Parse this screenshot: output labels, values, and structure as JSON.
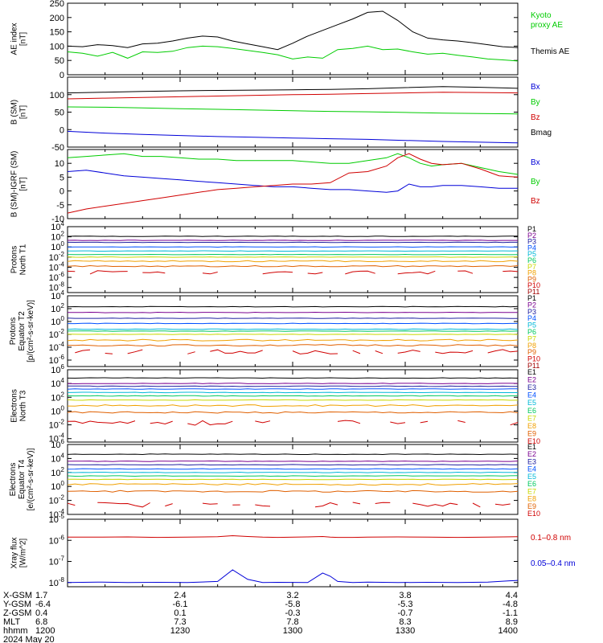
{
  "page_title": "",
  "colors": {
    "black": "#000000",
    "red": "#d00000",
    "green": "#00cc00",
    "blue": "#0000d8",
    "p1": "#000000",
    "p2": "#7a0090",
    "p3": "#2020a0",
    "p4": "#0050ff",
    "p5": "#00b8d8",
    "p6": "#00c860",
    "p7": "#c8d800",
    "p8": "#f0a000",
    "p9": "#e06000",
    "p10": "#d00000",
    "p11": "#a00000"
  },
  "x_axis": {
    "ticks": [
      "1200",
      "1230",
      "1300",
      "1330",
      "1400"
    ],
    "ephemeris": [
      {
        "label": "X-GSM",
        "values": [
          "1.7",
          "2.4",
          "3.2",
          "3.8",
          "4.4"
        ]
      },
      {
        "label": "Y-GSM",
        "values": [
          "-6.4",
          "-6.1",
          "-5.8",
          "-5.3",
          "-4.8"
        ]
      },
      {
        "label": "Z-GSM",
        "values": [
          "0.4",
          "0.1",
          "-0.3",
          "-0.7",
          "-1.1"
        ]
      },
      {
        "label": "MLT",
        "values": [
          "6.8",
          "7.3",
          "7.8",
          "8.3",
          "8.9"
        ]
      },
      {
        "label": "hhmm",
        "values": [
          "1200",
          "1230",
          "1300",
          "1330",
          "1400"
        ]
      }
    ],
    "date": "2024 May 20"
  },
  "chart_data": [
    {
      "type": "line",
      "id": "ae",
      "ylabel": [
        "AE index",
        "[nT]"
      ],
      "ylim": [
        0,
        250
      ],
      "scale": "linear",
      "yticks": [
        0,
        50,
        100,
        150,
        200,
        250
      ],
      "x": [
        0,
        4,
        8,
        12,
        16,
        20,
        24,
        28,
        32,
        36,
        40,
        44,
        48,
        52,
        56,
        60,
        64,
        68,
        72,
        76,
        80,
        84,
        88,
        92,
        96,
        100,
        104,
        108,
        112,
        116,
        120
      ],
      "series": [
        {
          "name": "Themis AE",
          "color": "#000000",
          "values": [
            100,
            98,
            105,
            102,
            95,
            108,
            110,
            118,
            128,
            135,
            132,
            118,
            108,
            98,
            88,
            110,
            135,
            155,
            175,
            195,
            218,
            222,
            190,
            150,
            128,
            122,
            118,
            112,
            105,
            98,
            95
          ]
        },
        {
          "name": "Kyoto proxy AE",
          "color": "#00cc00",
          "values": [
            80,
            75,
            65,
            78,
            58,
            80,
            78,
            82,
            95,
            100,
            98,
            92,
            85,
            78,
            70,
            55,
            62,
            58,
            88,
            92,
            100,
            88,
            90,
            80,
            72,
            75,
            68,
            62,
            55,
            52,
            48
          ]
        }
      ],
      "legend_lines": [
        {
          "text": "Kyoto",
          "color": "#00cc00"
        },
        {
          "text": "proxy AE",
          "color": "#00cc00"
        },
        {
          "text": "Themis AE",
          "color": "#000000"
        }
      ]
    },
    {
      "type": "line",
      "id": "bsm",
      "ylabel": [
        "B (SM)",
        "[nT]"
      ],
      "ylim": [
        -50,
        150
      ],
      "scale": "linear",
      "yticks": [
        -50,
        0,
        50,
        100
      ],
      "x": [
        0,
        10,
        20,
        30,
        40,
        50,
        60,
        70,
        80,
        90,
        100,
        110,
        120
      ],
      "series": [
        {
          "name": "Bmag",
          "color": "#000000",
          "values": [
            105,
            107,
            109,
            111,
            112,
            113,
            114,
            115,
            117,
            120,
            123,
            121,
            118
          ]
        },
        {
          "name": "Bx",
          "color": "#0000d8",
          "values": [
            -5,
            -10,
            -14,
            -17,
            -20,
            -22,
            -24,
            -26,
            -28,
            -31,
            -34,
            -36,
            -38
          ]
        },
        {
          "name": "By",
          "color": "#00cc00",
          "values": [
            65,
            64,
            62,
            60,
            58,
            56,
            54,
            52,
            51,
            49,
            47,
            46,
            45
          ]
        },
        {
          "name": "Bz",
          "color": "#d00000",
          "values": [
            88,
            90,
            92,
            94,
            96,
            98,
            100,
            101,
            103,
            105,
            107,
            106,
            105
          ]
        }
      ],
      "legend_lines": [
        {
          "text": "Bx",
          "color": "#0000d8"
        },
        {
          "text": "By",
          "color": "#00cc00"
        },
        {
          "text": "Bz",
          "color": "#d00000"
        },
        {
          "text": "Bmag",
          "color": "#000000"
        }
      ]
    },
    {
      "type": "line",
      "id": "digrf",
      "ylabel": [
        "B (SM)-IGRF (SM)",
        "[nT]"
      ],
      "ylim": [
        -10,
        15
      ],
      "scale": "linear",
      "yticks": [
        -10,
        -5,
        0,
        5,
        10
      ],
      "x": [
        0,
        5,
        10,
        15,
        20,
        25,
        30,
        35,
        40,
        45,
        50,
        55,
        60,
        65,
        70,
        75,
        80,
        85,
        88,
        91,
        94,
        97,
        100,
        105,
        110,
        115,
        120
      ],
      "series": [
        {
          "name": "Bx",
          "color": "#0000d8",
          "values": [
            7,
            7.5,
            6.5,
            5.5,
            5,
            4.5,
            4,
            3.5,
            3,
            2.5,
            2,
            1.5,
            1.5,
            1,
            0.5,
            0.5,
            0,
            -0.5,
            0,
            2.5,
            1.5,
            1.5,
            2,
            2,
            1.5,
            1,
            1
          ]
        },
        {
          "name": "By",
          "color": "#00cc00",
          "values": [
            12,
            12.5,
            13,
            13.5,
            12.5,
            12.5,
            12,
            11.5,
            11.5,
            11,
            11,
            11,
            11,
            10.5,
            10,
            10,
            11,
            12,
            13.5,
            12,
            10,
            9,
            9.5,
            10,
            8.5,
            7,
            6
          ]
        },
        {
          "name": "Bz",
          "color": "#d00000",
          "values": [
            -8,
            -6.5,
            -5.5,
            -4.5,
            -3.5,
            -2.5,
            -1.5,
            -0.5,
            0.5,
            1,
            1.5,
            2,
            2.5,
            2.5,
            3,
            6.5,
            7,
            9,
            12,
            13.5,
            11.5,
            10,
            9.5,
            10,
            8,
            5.5,
            5
          ]
        }
      ],
      "legend_lines": [
        {
          "text": "Bx",
          "color": "#0000d8"
        },
        {
          "text": "By",
          "color": "#00cc00"
        },
        {
          "text": "Bz",
          "color": "#d00000"
        }
      ]
    },
    {
      "type": "line",
      "id": "pn1",
      "ylabel": [
        "Protons",
        "North T1"
      ],
      "ylim": [
        -9,
        4
      ],
      "scale": "log",
      "yticks": [
        -8,
        -6,
        -4,
        -2,
        0,
        2,
        4
      ],
      "series": [
        {
          "name": "P1",
          "color": "#000000",
          "base": 2.1
        },
        {
          "name": "P2",
          "color": "#7a0090",
          "base": 1.3
        },
        {
          "name": "P3",
          "color": "#2020a0",
          "base": 0.9
        },
        {
          "name": "P4",
          "color": "#0050ff",
          "base": 0.0
        },
        {
          "name": "P5",
          "color": "#00b8d8",
          "base": -0.8
        },
        {
          "name": "P6",
          "color": "#00c860",
          "base": -1.5
        },
        {
          "name": "P7",
          "color": "#c8d800",
          "base": -2.0
        },
        {
          "name": "P8",
          "color": "#f0a000",
          "base": -2.8
        },
        {
          "name": "P9",
          "color": "#e06000",
          "base": -3.8
        },
        {
          "name": "P10",
          "color": "#d00000",
          "base": -5.0,
          "gappy": true
        },
        {
          "name": "P11",
          "color": "#a00000",
          "base": -7.0,
          "empty": true
        }
      ]
    },
    {
      "type": "line",
      "id": "pe2",
      "ylabel": [
        "Protons",
        "Equator T2",
        "[p/(cm²-s-sr-keV)]"
      ],
      "ylim": [
        -7,
        4
      ],
      "scale": "log",
      "yticks": [
        -6,
        -4,
        -2,
        0,
        2,
        4
      ],
      "series": [
        {
          "name": "P1",
          "color": "#000000",
          "base": 2.3
        },
        {
          "name": "P2",
          "color": "#7a0090",
          "base": 1.4
        },
        {
          "name": "P3",
          "color": "#2020a0",
          "base": 0.5
        },
        {
          "name": "P4",
          "color": "#0050ff",
          "base": -0.3
        },
        {
          "name": "P5",
          "color": "#00b8d8",
          "base": -1.2
        },
        {
          "name": "P6",
          "color": "#00c860",
          "base": -1.5
        },
        {
          "name": "P7",
          "color": "#c8d800",
          "base": -2.0
        },
        {
          "name": "P8",
          "color": "#f0a000",
          "base": -2.9
        },
        {
          "name": "P9",
          "color": "#e06000",
          "base": -3.7
        },
        {
          "name": "P10",
          "color": "#d00000",
          "base": -4.7,
          "gappy": true
        },
        {
          "name": "P11",
          "color": "#a00000",
          "base": -6.2,
          "empty": true
        }
      ]
    },
    {
      "type": "line",
      "id": "en3",
      "ylabel": [
        "Electrons",
        "North T3"
      ],
      "ylim": [
        -4.5,
        6
      ],
      "scale": "log",
      "yticks": [
        -4,
        -2,
        0,
        2,
        4,
        6
      ],
      "series": [
        {
          "name": "E1",
          "color": "#000000",
          "base": 4.8
        },
        {
          "name": "E2",
          "color": "#7a0090",
          "base": 4.0
        },
        {
          "name": "E3",
          "color": "#2020a0",
          "base": 3.6
        },
        {
          "name": "E4",
          "color": "#0050ff",
          "base": 3.2
        },
        {
          "name": "E5",
          "color": "#00b8d8",
          "base": 2.7
        },
        {
          "name": "E6",
          "color": "#00c860",
          "base": 2.2
        },
        {
          "name": "E7",
          "color": "#c8d800",
          "base": 1.6
        },
        {
          "name": "E8",
          "color": "#f0a000",
          "base": 0.8
        },
        {
          "name": "E9",
          "color": "#e06000",
          "base": -0.2
        },
        {
          "name": "E10",
          "color": "#d00000",
          "base": -1.7,
          "gappy": true
        }
      ]
    },
    {
      "type": "line",
      "id": "ee4",
      "ylabel": [
        "Electrons",
        "Equator T4",
        "[e/(cm²-s-sr-keV)]"
      ],
      "ylim": [
        -4,
        6
      ],
      "scale": "log",
      "yticks": [
        -4,
        -2,
        0,
        2,
        4,
        6
      ],
      "series": [
        {
          "name": "E1",
          "color": "#000000",
          "base": 4.6
        },
        {
          "name": "E2",
          "color": "#7a0090",
          "base": 3.6
        },
        {
          "name": "E3",
          "color": "#2020a0",
          "base": 3.1
        },
        {
          "name": "E4",
          "color": "#0050ff",
          "base": 2.5
        },
        {
          "name": "E5",
          "color": "#00b8d8",
          "base": 2.0
        },
        {
          "name": "E6",
          "color": "#00c860",
          "base": 1.5
        },
        {
          "name": "E7",
          "color": "#c8d800",
          "base": 1.0
        },
        {
          "name": "E8",
          "color": "#f0a000",
          "base": 0.3
        },
        {
          "name": "E9",
          "color": "#e06000",
          "base": -0.7
        },
        {
          "name": "E10",
          "color": "#d00000",
          "base": -2.6,
          "gappy": true
        }
      ]
    },
    {
      "type": "line",
      "id": "xray",
      "ylabel": [
        "Xray flux",
        "[W/m^2]"
      ],
      "ylim": [
        -8.2,
        -5
      ],
      "scale": "log",
      "yticks": [
        -8,
        -7,
        -6,
        -5
      ],
      "x": [
        0,
        8,
        16,
        24,
        32,
        40,
        44,
        48,
        52,
        56,
        64,
        68,
        70,
        72,
        76,
        80,
        88,
        96,
        104,
        112,
        120
      ],
      "series": [
        {
          "name": "0.1-0.8 nm",
          "color": "#d00000",
          "values": [
            -5.85,
            -5.85,
            -5.84,
            -5.86,
            -5.85,
            -5.83,
            -5.78,
            -5.82,
            -5.85,
            -5.86,
            -5.84,
            -5.82,
            -5.85,
            -5.86,
            -5.86,
            -5.85,
            -5.84,
            -5.85,
            -5.86,
            -5.85,
            -5.83
          ]
        },
        {
          "name": "0.05-0.4 nm",
          "color": "#0000d8",
          "values": [
            -8.0,
            -7.98,
            -8.0,
            -7.99,
            -8.0,
            -7.95,
            -7.4,
            -7.85,
            -8.0,
            -7.99,
            -8.0,
            -7.55,
            -7.7,
            -7.95,
            -8.0,
            -7.98,
            -8.0,
            -7.99,
            -8.0,
            -7.98,
            -7.9
          ]
        }
      ],
      "legend_lines": [
        {
          "text": "0.1–0.8 nm",
          "color": "#d00000"
        },
        {
          "text": "0.05–0.4 nm",
          "color": "#0000d8"
        }
      ]
    }
  ]
}
